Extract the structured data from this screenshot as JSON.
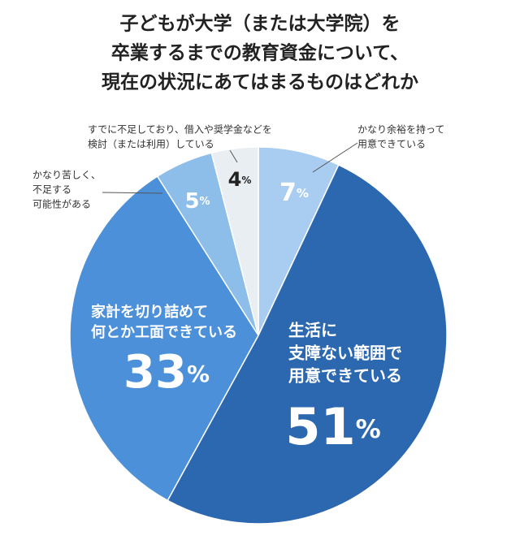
{
  "chart_data": {
    "type": "pie",
    "title": [
      "子どもが大学（または大学院）を",
      "卒業するまでの教育資金について、",
      "現在の状況にあてはまるものはどれか"
    ],
    "categories": [
      [
        "かなり余裕を持って",
        "用意できている"
      ],
      [
        "生活に",
        "支障ない範囲で",
        "用意できている"
      ],
      [
        "家計を切り詰めて",
        "何とか工面できている"
      ],
      [
        "かなり苦しく、",
        "不足する",
        "可能性がある"
      ],
      [
        "すでに不足しており、借入や奨学金などを",
        "検討（または利用）している"
      ]
    ],
    "values": [
      7,
      51,
      33,
      5,
      4
    ],
    "value_labels": [
      "7%",
      "51%",
      "33%",
      "5%",
      "4%"
    ],
    "colors": [
      "#a9cdf0",
      "#2c68b0",
      "#4b90d9",
      "#8dbde9",
      "#e9eef3"
    ]
  }
}
